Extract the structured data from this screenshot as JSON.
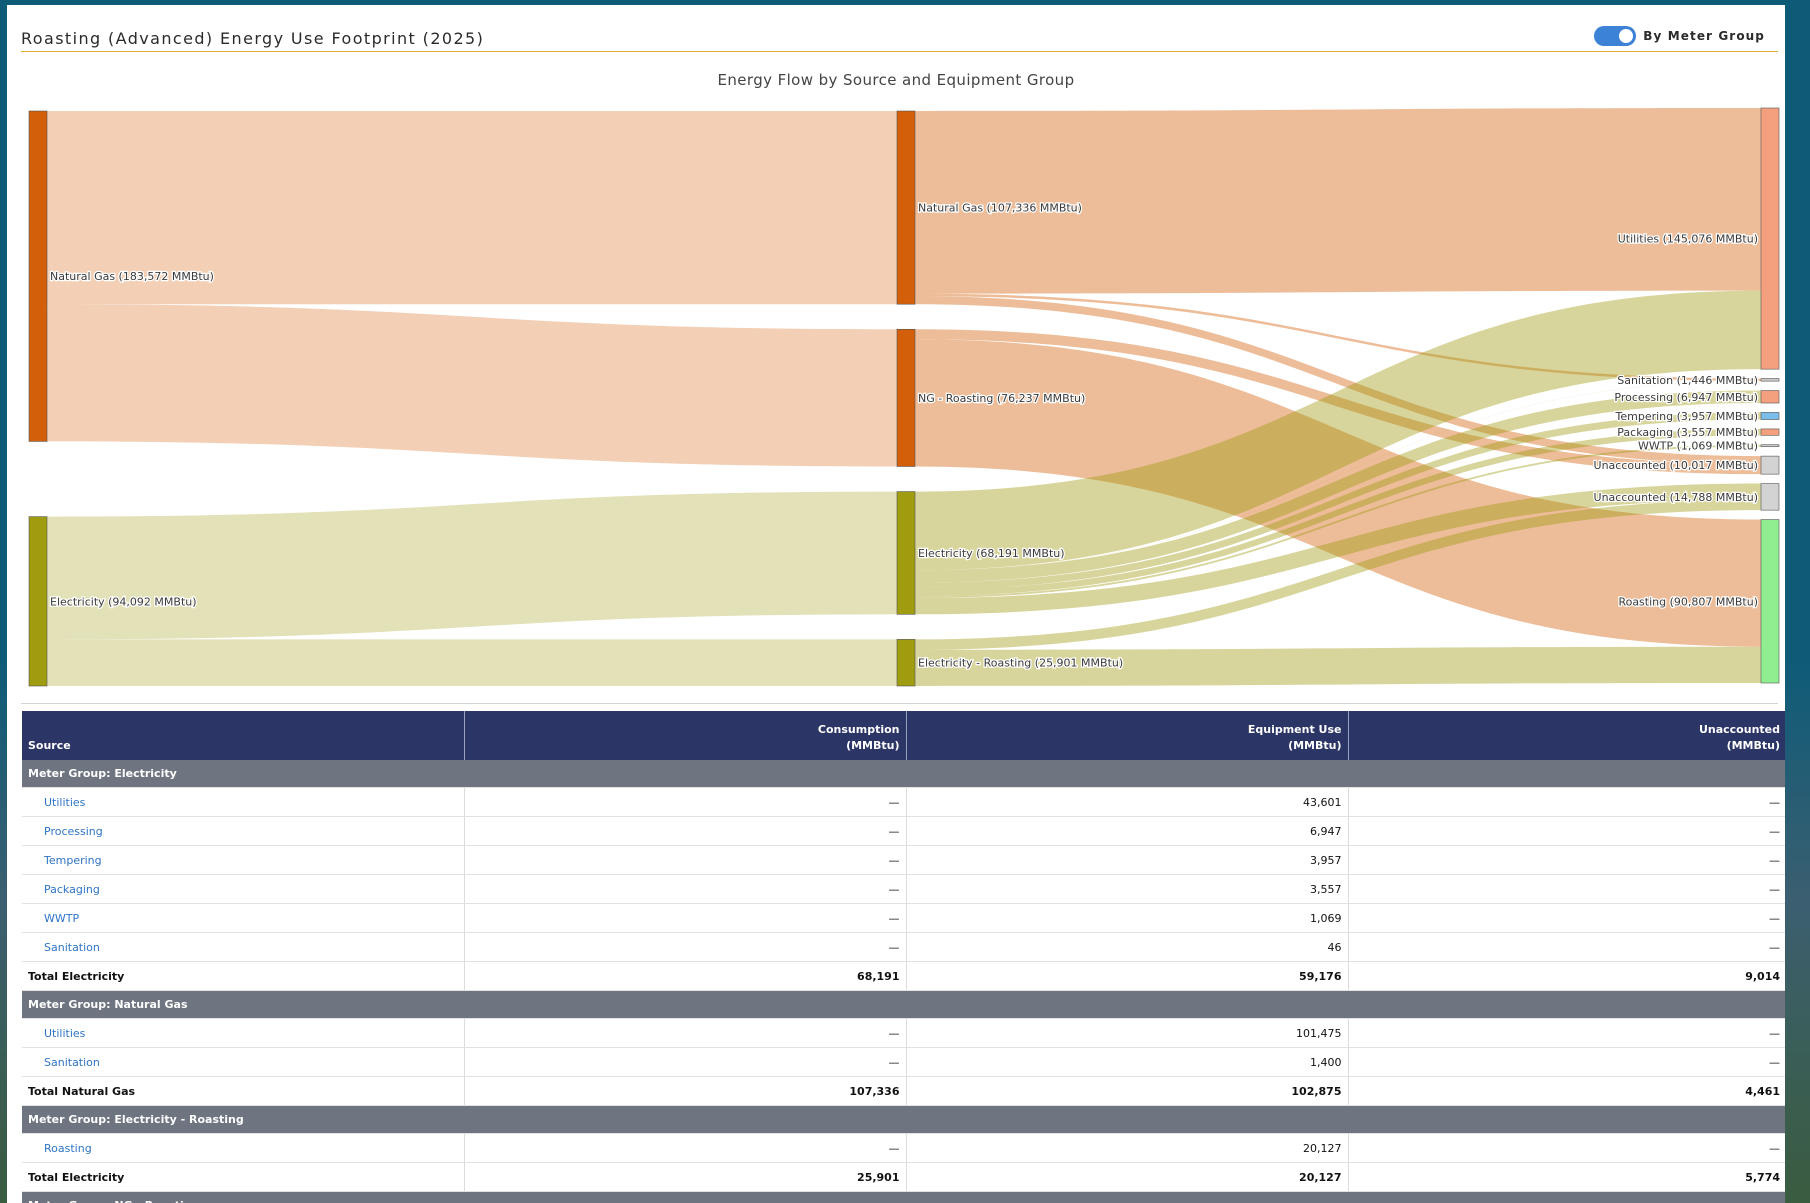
{
  "header": {
    "title": "Roasting (Advanced) Energy Use Footprint (2025)",
    "toggle_label": "By Meter Group",
    "toggle_on": true
  },
  "chart_data": {
    "type": "sankey",
    "title": "Energy Flow by Source and Equipment Group",
    "nodes": [
      {
        "id": "src_ng",
        "label": "Natural Gas (183,572 MMBtu)",
        "value": 183572,
        "color": "#d35f0a"
      },
      {
        "id": "src_el",
        "label": "Electricity (94,092 MMBtu)",
        "value": 94092,
        "color": "#a09c10"
      },
      {
        "id": "mg_ng",
        "label": "Natural Gas (107,336 MMBtu)",
        "value": 107336,
        "color": "#d35f0a"
      },
      {
        "id": "mg_ngr",
        "label": "NG - Roasting (76,237 MMBtu)",
        "value": 76237,
        "color": "#d35f0a"
      },
      {
        "id": "mg_el",
        "label": "Electricity (68,191 MMBtu)",
        "value": 68191,
        "color": "#a09c10"
      },
      {
        "id": "mg_elr",
        "label": "Electricity - Roasting (25,901 MMBtu)",
        "value": 25901,
        "color": "#a09c10"
      },
      {
        "id": "eq_util",
        "label": "Utilities (145,076 MMBtu)",
        "value": 145076,
        "color": "#f4a07e"
      },
      {
        "id": "eq_san",
        "label": "Sanitation (1,446 MMBtu)",
        "value": 1446,
        "color": "#c9c9c9"
      },
      {
        "id": "eq_proc",
        "label": "Processing (6,947 MMBtu)",
        "value": 6947,
        "color": "#f4a07e"
      },
      {
        "id": "eq_temp",
        "label": "Tempering (3,957 MMBtu)",
        "value": 3957,
        "color": "#7bbde8"
      },
      {
        "id": "eq_pack",
        "label": "Packaging (3,557 MMBtu)",
        "value": 3557,
        "color": "#f4a07e"
      },
      {
        "id": "eq_wwtp",
        "label": "WWTP (1,069 MMBtu)",
        "value": 1069,
        "color": "#c9c9c9"
      },
      {
        "id": "eq_un1",
        "label": "Unaccounted (10,017 MMBtu)",
        "value": 10017,
        "color": "#d3d3d3"
      },
      {
        "id": "eq_un2",
        "label": "Unaccounted (14,788 MMBtu)",
        "value": 14788,
        "color": "#d3d3d3"
      },
      {
        "id": "eq_roast",
        "label": "Roasting (90,807 MMBtu)",
        "value": 90807,
        "color": "#90ee90"
      }
    ],
    "links": [
      {
        "source": "src_ng",
        "target": "mg_ng",
        "value": 107336
      },
      {
        "source": "src_ng",
        "target": "mg_ngr",
        "value": 76237
      },
      {
        "source": "src_el",
        "target": "mg_el",
        "value": 68191
      },
      {
        "source": "src_el",
        "target": "mg_elr",
        "value": 25901
      },
      {
        "source": "mg_ng",
        "target": "eq_util",
        "value": 101475
      },
      {
        "source": "mg_ng",
        "target": "eq_san",
        "value": 1400
      },
      {
        "source": "mg_ng",
        "target": "eq_un1",
        "value": 4461
      },
      {
        "source": "mg_ngr",
        "target": "eq_un1",
        "value": 5556
      },
      {
        "source": "mg_ngr",
        "target": "eq_roast",
        "value": 70681
      },
      {
        "source": "mg_el",
        "target": "eq_util",
        "value": 43601
      },
      {
        "source": "mg_el",
        "target": "eq_san",
        "value": 46
      },
      {
        "source": "mg_el",
        "target": "eq_proc",
        "value": 6947
      },
      {
        "source": "mg_el",
        "target": "eq_temp",
        "value": 3957
      },
      {
        "source": "mg_el",
        "target": "eq_pack",
        "value": 3557
      },
      {
        "source": "mg_el",
        "target": "eq_wwtp",
        "value": 1069
      },
      {
        "source": "mg_el",
        "target": "eq_un2",
        "value": 9014
      },
      {
        "source": "mg_elr",
        "target": "eq_un2",
        "value": 5774
      },
      {
        "source": "mg_elr",
        "target": "eq_roast",
        "value": 20127
      }
    ]
  },
  "table": {
    "headers": [
      {
        "line1": "",
        "line2": "Source"
      },
      {
        "line1": "Consumption",
        "line2": "(MMBtu)"
      },
      {
        "line1": "Equipment Use",
        "line2": "(MMBtu)"
      },
      {
        "line1": "Unaccounted",
        "line2": "(MMBtu)"
      }
    ],
    "rows": [
      {
        "kind": "group",
        "cells": [
          "Meter Group: Electricity"
        ]
      },
      {
        "kind": "item",
        "cells": [
          "Utilities",
          "—",
          "43,601",
          "—"
        ]
      },
      {
        "kind": "item",
        "cells": [
          "Processing",
          "—",
          "6,947",
          "—"
        ]
      },
      {
        "kind": "item",
        "cells": [
          "Tempering",
          "—",
          "3,957",
          "—"
        ]
      },
      {
        "kind": "item",
        "cells": [
          "Packaging",
          "—",
          "3,557",
          "—"
        ]
      },
      {
        "kind": "item",
        "cells": [
          "WWTP",
          "—",
          "1,069",
          "—"
        ]
      },
      {
        "kind": "item",
        "cells": [
          "Sanitation",
          "—",
          "46",
          "—"
        ]
      },
      {
        "kind": "total",
        "cells": [
          "Total Electricity",
          "68,191",
          "59,176",
          "9,014"
        ]
      },
      {
        "kind": "group",
        "cells": [
          "Meter Group: Natural Gas"
        ]
      },
      {
        "kind": "item",
        "cells": [
          "Utilities",
          "—",
          "101,475",
          "—"
        ]
      },
      {
        "kind": "item",
        "cells": [
          "Sanitation",
          "—",
          "1,400",
          "—"
        ]
      },
      {
        "kind": "total",
        "cells": [
          "Total Natural Gas",
          "107,336",
          "102,875",
          "4,461"
        ]
      },
      {
        "kind": "group",
        "cells": [
          "Meter Group: Electricity - Roasting"
        ]
      },
      {
        "kind": "item",
        "cells": [
          "Roasting",
          "—",
          "20,127",
          "—"
        ]
      },
      {
        "kind": "total",
        "cells": [
          "Total Electricity",
          "25,901",
          "20,127",
          "5,774"
        ]
      },
      {
        "kind": "group",
        "cells": [
          "Meter Group: NG - Roasting"
        ]
      }
    ]
  }
}
